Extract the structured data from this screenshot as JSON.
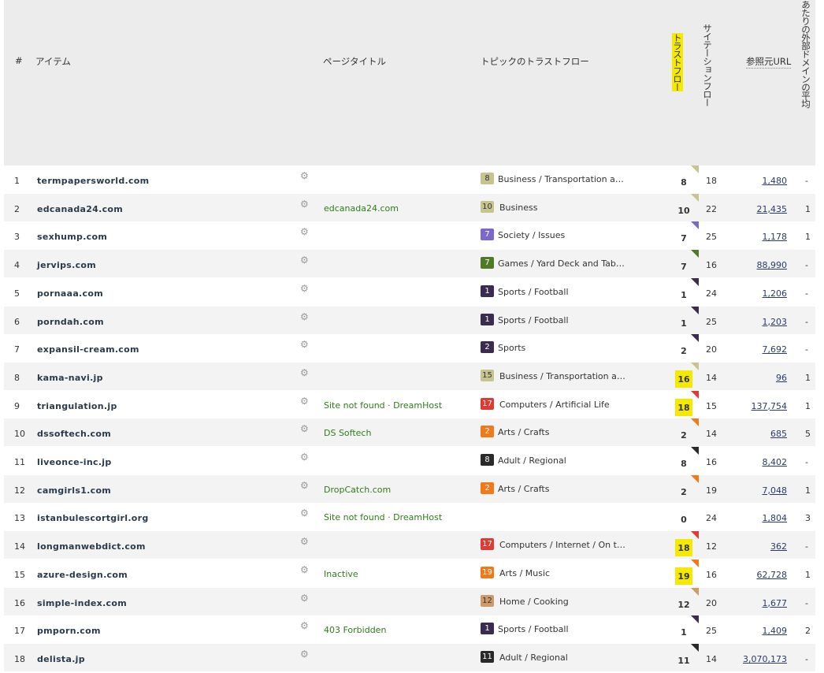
{
  "header": {
    "num": "#",
    "item": "アイテム",
    "page_title": "ページタイトル",
    "topic_tf": "トピックのトラストフロー",
    "trust_flow": "トラストフロー",
    "citation_flow": "サイテーションフロー",
    "ref_url": "参照元URL",
    "avg": "あたりの外部ドメインの平均"
  },
  "colors": {
    "Business": "#c8c48f",
    "Society": "#7b68c9",
    "Games": "#4f7a28",
    "Sports": "#3b2b4f",
    "Computers": "#e03a32",
    "Arts": "#f07a1a",
    "Adult": "#2a2a2a",
    "Home": "#cf9a6a"
  },
  "rows": [
    {
      "num": "1",
      "item": "termpapersworld.com",
      "title": "",
      "tfnum": "8",
      "cat": "Business",
      "topic": "Business / Transportation a…",
      "trust": "8",
      "hl": false,
      "cf": "18",
      "ref": "1,480",
      "avg": "-"
    },
    {
      "num": "2",
      "item": "edcanada24.com",
      "title": "edcanada24.com",
      "tfnum": "10",
      "cat": "Business",
      "topic": "Business",
      "trust": "10",
      "hl": false,
      "cf": "22",
      "ref": "21,435",
      "avg": "1"
    },
    {
      "num": "3",
      "item": "sexhump.com",
      "title": "",
      "tfnum": "7",
      "cat": "Society",
      "topic": "Society / Issues",
      "trust": "7",
      "hl": false,
      "cf": "25",
      "ref": "1,178",
      "avg": "1"
    },
    {
      "num": "4",
      "item": "jervips.com",
      "title": "",
      "tfnum": "7",
      "cat": "Games",
      "topic": "Games / Yard Deck and Tab…",
      "trust": "7",
      "hl": false,
      "cf": "16",
      "ref": "88,990",
      "avg": "-"
    },
    {
      "num": "5",
      "item": "pornaaa.com",
      "title": "",
      "tfnum": "1",
      "cat": "Sports",
      "topic": "Sports / Football",
      "trust": "1",
      "hl": false,
      "cf": "24",
      "ref": "1,206",
      "avg": "-"
    },
    {
      "num": "6",
      "item": "porndah.com",
      "title": "",
      "tfnum": "1",
      "cat": "Sports",
      "topic": "Sports / Football",
      "trust": "1",
      "hl": false,
      "cf": "25",
      "ref": "1,203",
      "avg": "-"
    },
    {
      "num": "7",
      "item": "expansil-cream.com",
      "title": "",
      "tfnum": "2",
      "cat": "Sports",
      "topic": "Sports",
      "trust": "2",
      "hl": false,
      "cf": "20",
      "ref": "7,692",
      "avg": "-"
    },
    {
      "num": "8",
      "item": "kama-navi.jp",
      "title": "",
      "tfnum": "15",
      "cat": "Business",
      "topic": "Business / Transportation a…",
      "trust": "16",
      "hl": true,
      "cf": "14",
      "ref": "96",
      "avg": "1"
    },
    {
      "num": "9",
      "item": "triangulation.jp",
      "title": "Site not found · DreamHost",
      "tfnum": "17",
      "cat": "Computers",
      "topic": "Computers / Artificial Life",
      "trust": "18",
      "hl": true,
      "cf": "15",
      "ref": "137,754",
      "avg": "1"
    },
    {
      "num": "10",
      "item": "dssoftech.com",
      "title": "DS Softech",
      "tfnum": "2",
      "cat": "Arts",
      "topic": "Arts / Crafts",
      "trust": "2",
      "hl": false,
      "cf": "14",
      "ref": "685",
      "avg": "5"
    },
    {
      "num": "11",
      "item": "liveonce-inc.jp",
      "title": "",
      "tfnum": "8",
      "cat": "Adult",
      "topic": "Adult / Regional",
      "trust": "8",
      "hl": false,
      "cf": "16",
      "ref": "8,402",
      "avg": "-"
    },
    {
      "num": "12",
      "item": "camgirls1.com",
      "title": "DropCatch.com",
      "tfnum": "2",
      "cat": "Arts",
      "topic": "Arts / Crafts",
      "trust": "2",
      "hl": false,
      "cf": "19",
      "ref": "7,048",
      "avg": "1"
    },
    {
      "num": "13",
      "item": "istanbulescortgirl.org",
      "title": "Site not found · DreamHost",
      "tfnum": "",
      "cat": "",
      "topic": "",
      "trust": "0",
      "hl": false,
      "cf": "24",
      "ref": "1,804",
      "avg": "3"
    },
    {
      "num": "14",
      "item": "longmanwebdict.com",
      "title": "",
      "tfnum": "17",
      "cat": "Computers",
      "topic": "Computers / Internet / On t…",
      "trust": "18",
      "hl": true,
      "cf": "12",
      "ref": "362",
      "avg": "-"
    },
    {
      "num": "15",
      "item": "azure-design.com",
      "title": "Inactive",
      "tfnum": "19",
      "cat": "Arts",
      "topic": "Arts / Music",
      "trust": "19",
      "hl": true,
      "cf": "16",
      "ref": "62,728",
      "avg": "1"
    },
    {
      "num": "16",
      "item": "simple-index.com",
      "title": "",
      "tfnum": "12",
      "cat": "Home",
      "topic": "Home / Cooking",
      "trust": "12",
      "hl": false,
      "cf": "20",
      "ref": "1,677",
      "avg": "-"
    },
    {
      "num": "17",
      "item": "pmporn.com",
      "title": "403 Forbidden",
      "tfnum": "1",
      "cat": "Sports",
      "topic": "Sports / Football",
      "trust": "1",
      "hl": false,
      "cf": "25",
      "ref": "1,409",
      "avg": "2"
    },
    {
      "num": "18",
      "item": "delista.jp",
      "title": "",
      "tfnum": "11",
      "cat": "Adult",
      "topic": "Adult / Regional",
      "trust": "11",
      "hl": false,
      "cf": "14",
      "ref": "3,070,173",
      "avg": "-"
    }
  ]
}
